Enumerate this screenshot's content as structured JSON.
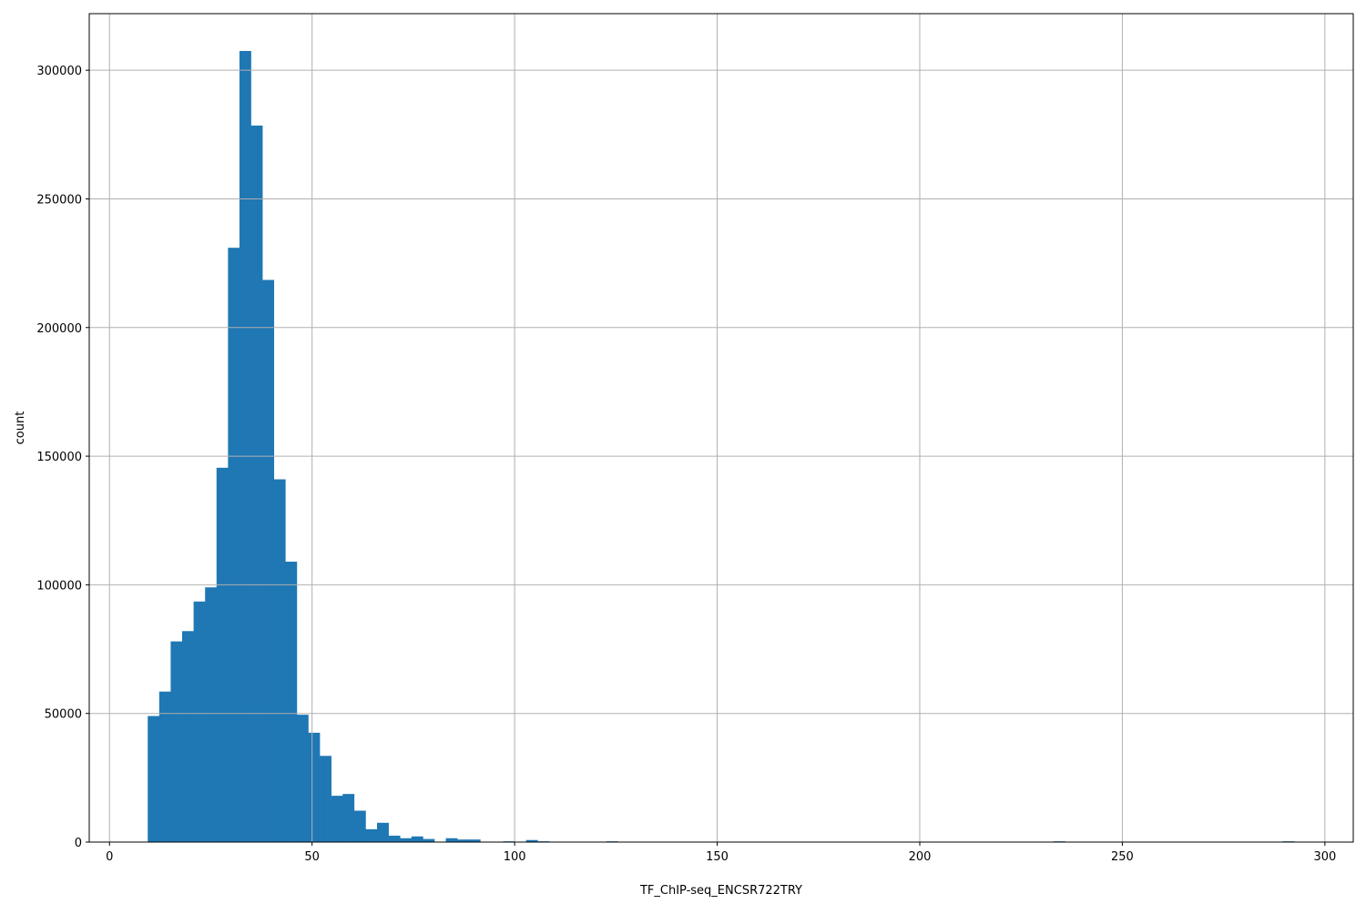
{
  "chart_data": {
    "type": "bar",
    "subtype": "histogram",
    "title": "",
    "xlabel": "TF_ChIP-seq_ENCSR722TRY",
    "ylabel": "count",
    "xlim": [
      -5,
      307
    ],
    "ylim": [
      0,
      322000
    ],
    "xticks": [
      0,
      50,
      100,
      150,
      200,
      250,
      300
    ],
    "yticks": [
      0,
      50000,
      100000,
      150000,
      200000,
      250000,
      300000
    ],
    "grid": true,
    "bar_color": "#1f77b4",
    "grid_color": "#b0b0b0",
    "bin_start": 9.44,
    "bin_width": 2.83,
    "counts": [
      49000,
      58500,
      78000,
      82000,
      93500,
      99000,
      145500,
      231000,
      307500,
      278500,
      218500,
      141000,
      109000,
      49500,
      42500,
      33500,
      18000,
      18700,
      12200,
      5000,
      7500,
      2500,
      1500,
      2200,
      1200,
      0,
      1500,
      1000,
      1000,
      0,
      0,
      300,
      0,
      800,
      300,
      0,
      0,
      0,
      0,
      0,
      300,
      0,
      0,
      0,
      0,
      0,
      0,
      0,
      0,
      0,
      0,
      0,
      0,
      0,
      0,
      0,
      0,
      0,
      0,
      0,
      0,
      0,
      0,
      0,
      0,
      0,
      0,
      0,
      0,
      0,
      0,
      0,
      0,
      0,
      0,
      0,
      0,
      0,
      0,
      300,
      0,
      0,
      0,
      0,
      0,
      0,
      0,
      0,
      0,
      0,
      0,
      0,
      0,
      0,
      0,
      0,
      0,
      0,
      0,
      300
    ]
  }
}
